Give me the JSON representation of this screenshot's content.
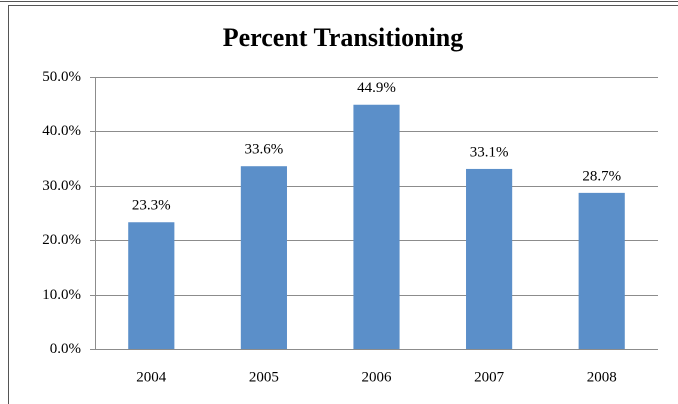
{
  "chart_data": {
    "type": "bar",
    "title": "Percent Transitioning",
    "categories": [
      "2004",
      "2005",
      "2006",
      "2007",
      "2008"
    ],
    "values": [
      23.3,
      33.6,
      44.9,
      33.1,
      28.7
    ],
    "value_labels": [
      "23.3%",
      "33.6%",
      "44.9%",
      "33.1%",
      "28.7%"
    ],
    "color": "#5b8fc9",
    "ylim": [
      0,
      50
    ],
    "yticks": [
      {
        "value": 0,
        "label": "0.0%"
      },
      {
        "value": 10,
        "label": "10.0%"
      },
      {
        "value": 20,
        "label": "20.0%"
      },
      {
        "value": 30,
        "label": "30.0%"
      },
      {
        "value": 40,
        "label": "40.0%"
      },
      {
        "value": 50,
        "label": "50.0%"
      }
    ],
    "grid": true
  }
}
